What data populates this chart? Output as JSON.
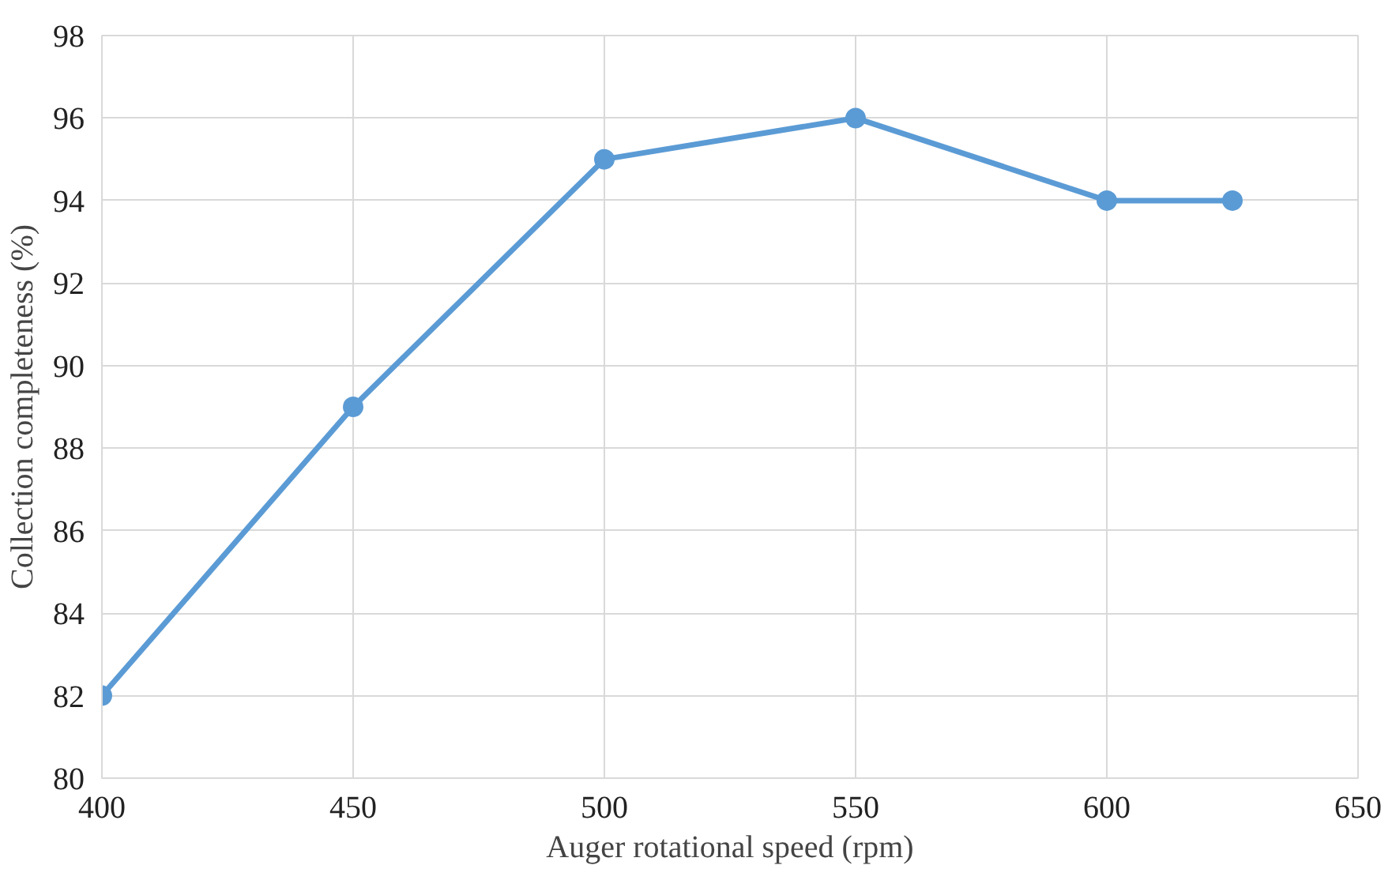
{
  "chart_data": {
    "type": "line",
    "xlabel": "Auger rotational speed (rpm)",
    "ylabel": "Collection completeness (%)",
    "x": [
      400,
      450,
      500,
      550,
      600,
      625
    ],
    "series": [
      {
        "color": "#5b9bd5",
        "values": [
          82,
          89,
          95,
          96,
          94,
          94
        ]
      }
    ],
    "xlim": [
      400,
      650
    ],
    "xticks": [
      400,
      450,
      500,
      550,
      600,
      650
    ],
    "ylim": [
      80,
      98
    ],
    "yticks": [
      80,
      82,
      84,
      86,
      88,
      90,
      92,
      94,
      96,
      98
    ],
    "grid": true,
    "marker": "circle",
    "line_style": "solid"
  }
}
